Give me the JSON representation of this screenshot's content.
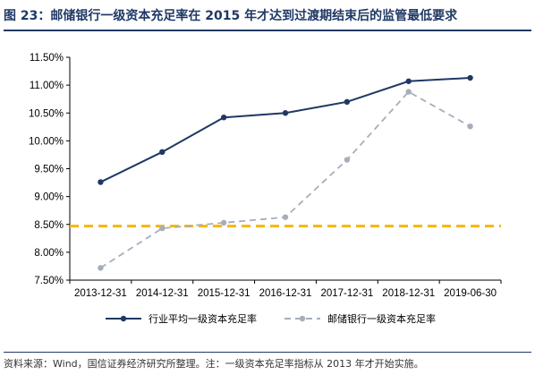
{
  "title": "图 23：邮储银行一级资本充足率在 2015 年才达到过渡期结束后的监管最低要求",
  "source": "资料来源：Wind，国信证券经济研究所整理。注：一级资本充足率指标从 2013 年才开始实施。",
  "colors": {
    "series1": "#1f3864",
    "series2": "#a6aebb",
    "threshold": "#f5b800",
    "title": "#1f3864"
  },
  "chart_data": {
    "type": "line",
    "categories": [
      "2013-12-31",
      "2014-12-31",
      "2015-12-31",
      "2016-12-31",
      "2017-12-31",
      "2018-12-31",
      "2019-06-30"
    ],
    "y_ticks": [
      "11.50%",
      "11.00%",
      "10.50%",
      "10.00%",
      "9.50%",
      "9.00%",
      "8.50%",
      "8.00%",
      "7.50%"
    ],
    "ylim": [
      7.5,
      11.5
    ],
    "series": [
      {
        "name": "行业平均一级资本充足率",
        "values": [
          9.26,
          9.8,
          10.42,
          10.5,
          10.7,
          11.07,
          11.13
        ],
        "style": "solid"
      },
      {
        "name": "邮储银行一级资本充足率",
        "values": [
          7.72,
          8.43,
          8.53,
          8.63,
          9.66,
          10.88,
          10.26
        ],
        "style": "dashed"
      }
    ],
    "reference_line": {
      "value": 8.47,
      "style": "dashed"
    },
    "legend_position": "bottom",
    "grid": false
  }
}
